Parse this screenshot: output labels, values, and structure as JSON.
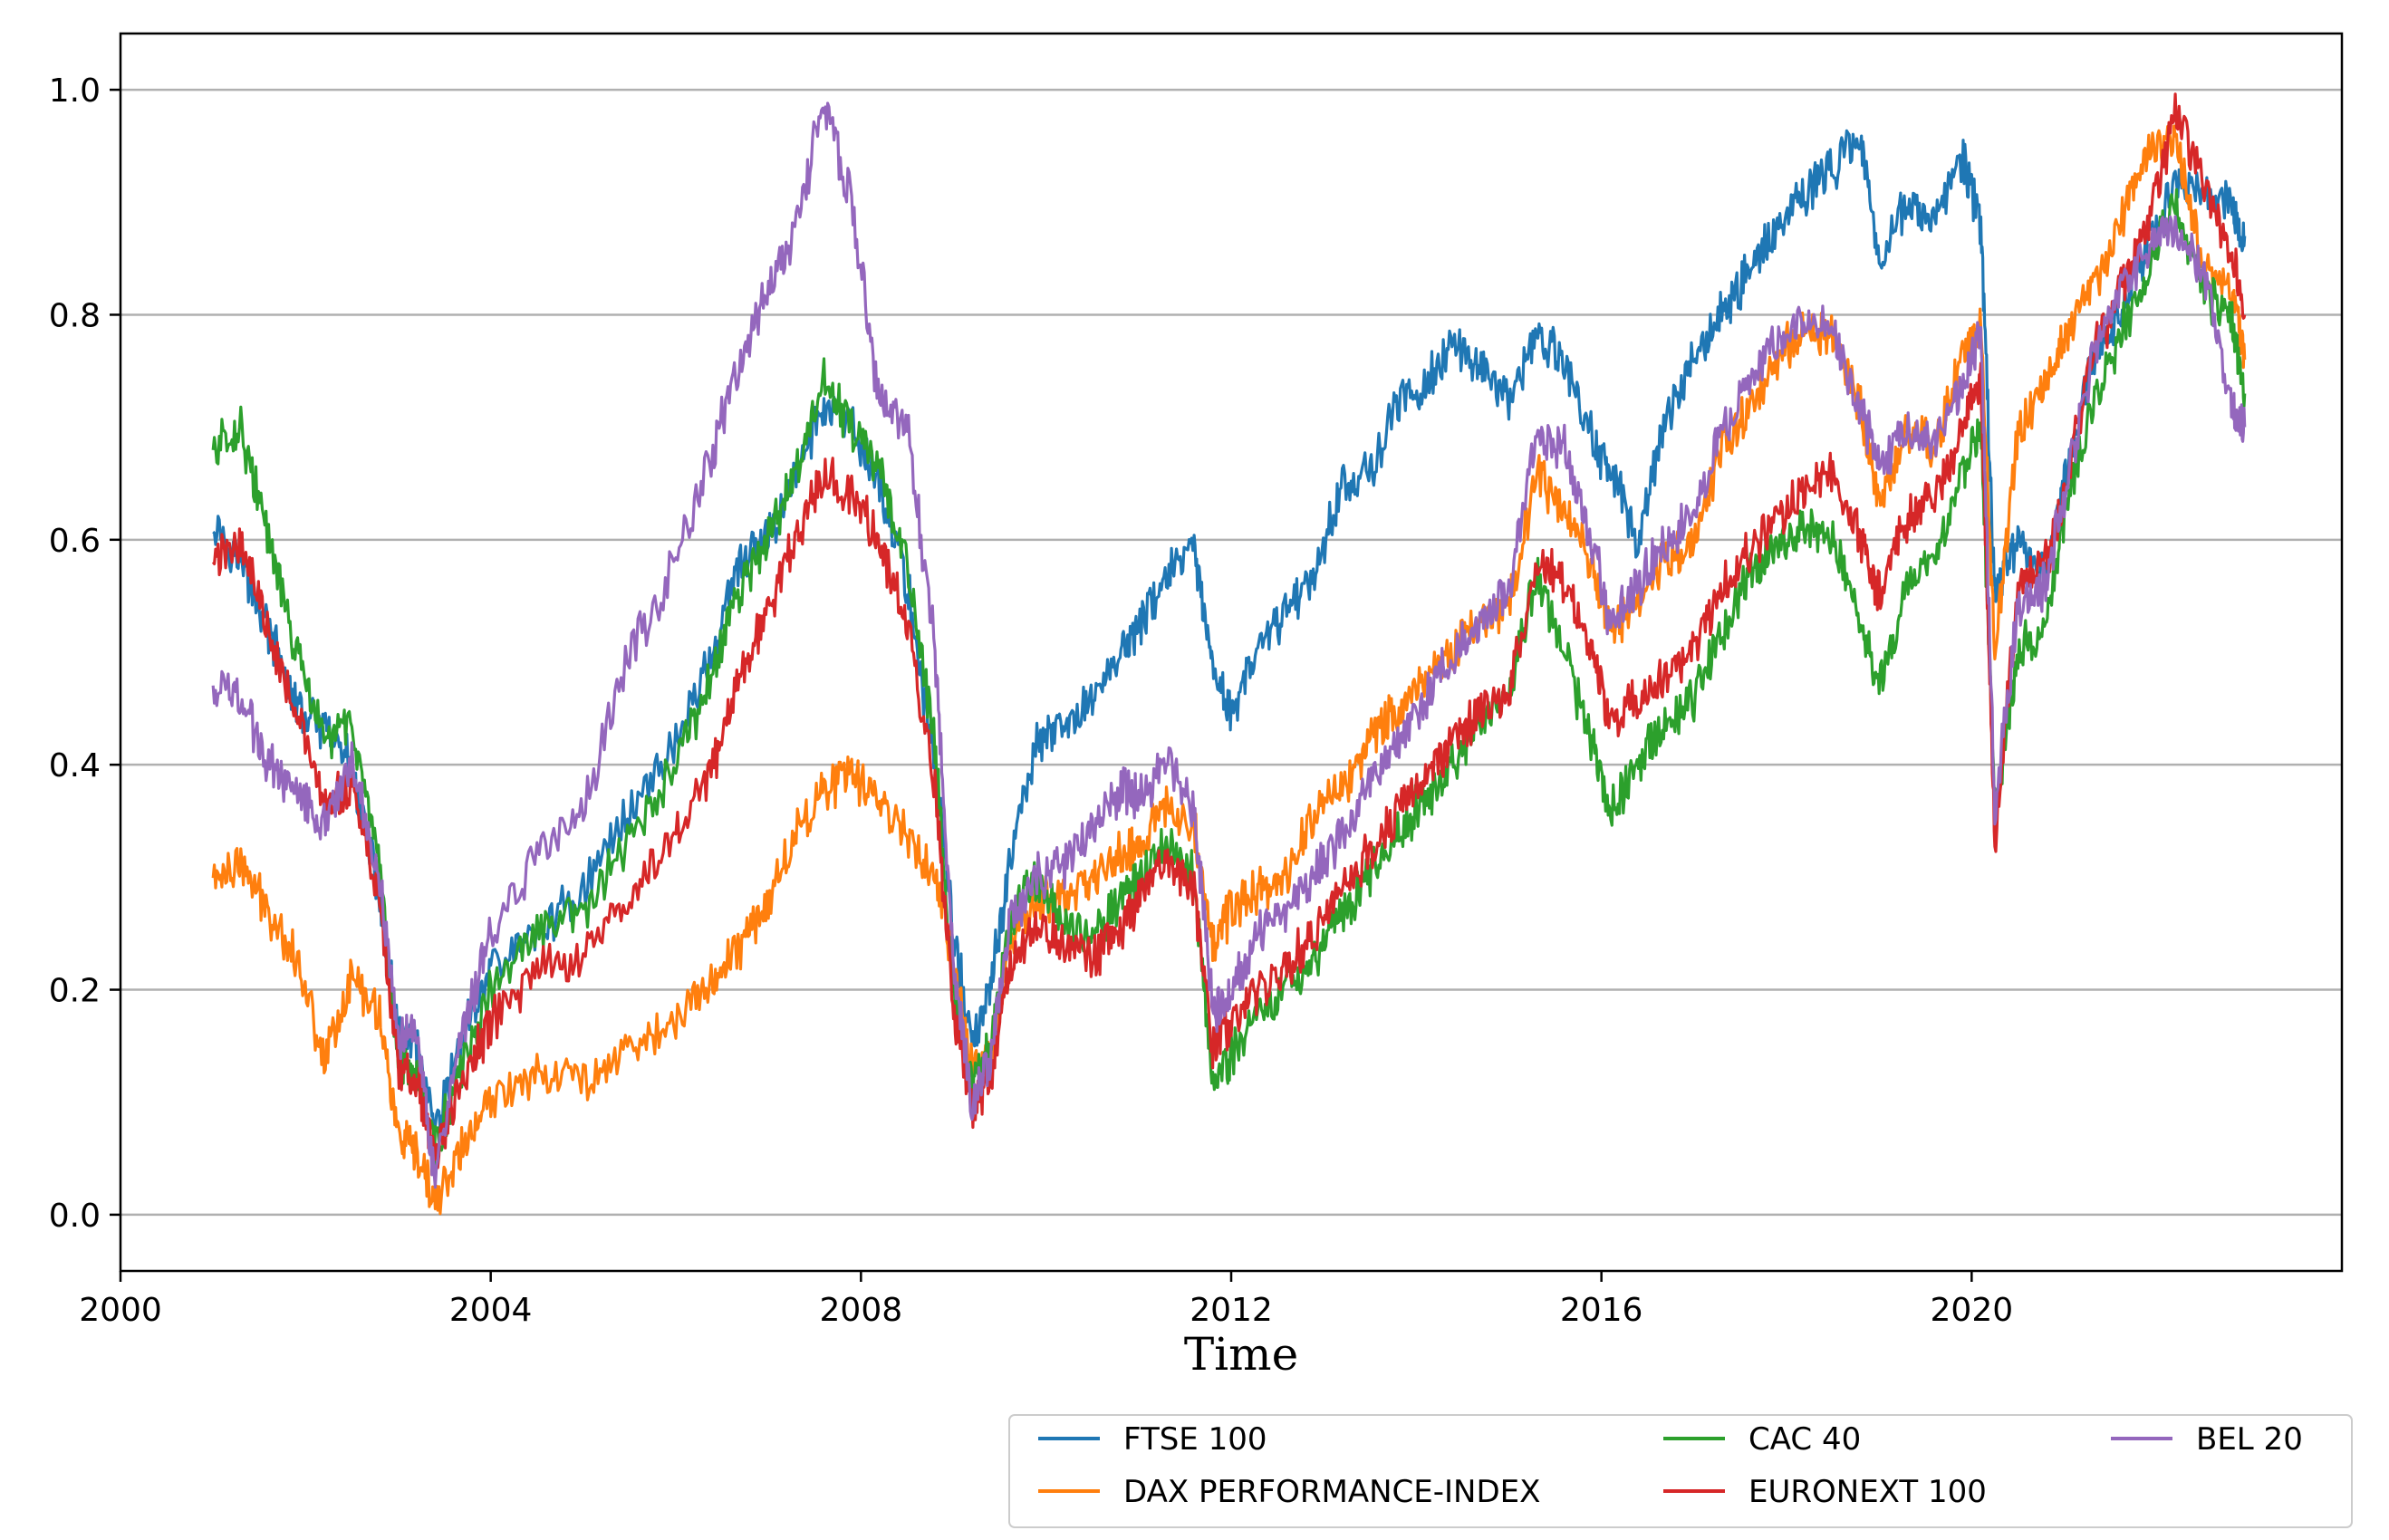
{
  "chart_data": {
    "type": "line",
    "title": "",
    "xlabel": "Time",
    "ylabel": "",
    "xlim": [
      2000.0,
      2024.0
    ],
    "ylim": [
      -0.05,
      1.05
    ],
    "x_ticks": [
      2000,
      2004,
      2008,
      2012,
      2016,
      2020
    ],
    "x_tick_labels": [
      "2000",
      "2004",
      "2008",
      "2012",
      "2016",
      "2020"
    ],
    "y_ticks": [
      0.0,
      0.2,
      0.4,
      0.6,
      0.8,
      1.0
    ],
    "y_tick_labels": [
      "0.0",
      "0.2",
      "0.4",
      "0.6",
      "0.8",
      "1.0"
    ],
    "grid": "horizontal",
    "legend_position": "bottom-right, below axes",
    "series": [
      {
        "name": "FTSE 100",
        "color": "#1f77b4",
        "x": [
          2001.0,
          2001.3,
          2001.6,
          2001.9,
          2002.2,
          2002.5,
          2002.8,
          2003.0,
          2003.2,
          2003.4,
          2003.7,
          2004.0,
          2004.5,
          2005.0,
          2005.5,
          2006.0,
          2006.4,
          2006.7,
          2007.0,
          2007.3,
          2007.6,
          2007.9,
          2008.2,
          2008.5,
          2008.8,
          2009.0,
          2009.2,
          2009.4,
          2009.6,
          2009.9,
          2010.2,
          2010.5,
          2010.8,
          2011.0,
          2011.3,
          2011.6,
          2011.8,
          2012.0,
          2012.3,
          2012.6,
          2012.9,
          2013.2,
          2013.5,
          2013.8,
          2014.1,
          2014.4,
          2014.7,
          2015.0,
          2015.3,
          2015.6,
          2015.9,
          2016.1,
          2016.4,
          2016.7,
          2017.0,
          2017.3,
          2017.6,
          2017.9,
          2018.2,
          2018.5,
          2018.8,
          2019.0,
          2019.3,
          2019.6,
          2019.9,
          2020.1,
          2020.25,
          2020.5,
          2020.8,
          2021.0,
          2021.3,
          2021.6,
          2021.9,
          2022.2,
          2022.5,
          2022.8,
          2022.95
        ],
        "values": [
          0.62,
          0.58,
          0.52,
          0.45,
          0.43,
          0.4,
          0.28,
          0.16,
          0.15,
          0.07,
          0.16,
          0.22,
          0.25,
          0.29,
          0.36,
          0.42,
          0.5,
          0.58,
          0.6,
          0.66,
          0.72,
          0.7,
          0.65,
          0.56,
          0.4,
          0.25,
          0.15,
          0.2,
          0.31,
          0.42,
          0.43,
          0.46,
          0.5,
          0.52,
          0.57,
          0.59,
          0.48,
          0.45,
          0.5,
          0.54,
          0.57,
          0.65,
          0.66,
          0.72,
          0.74,
          0.77,
          0.76,
          0.72,
          0.78,
          0.76,
          0.69,
          0.66,
          0.6,
          0.71,
          0.76,
          0.8,
          0.84,
          0.88,
          0.91,
          0.93,
          0.96,
          0.85,
          0.9,
          0.88,
          0.94,
          0.88,
          0.55,
          0.6,
          0.57,
          0.65,
          0.76,
          0.8,
          0.86,
          0.92,
          0.91,
          0.9,
          0.87
        ]
      },
      {
        "name": "DAX PERFORMANCE-INDEX",
        "color": "#ff7f0e",
        "x": [
          2001.0,
          2001.3,
          2001.6,
          2001.9,
          2002.2,
          2002.5,
          2002.8,
          2003.0,
          2003.2,
          2003.4,
          2003.7,
          2004.0,
          2004.5,
          2005.0,
          2005.5,
          2006.0,
          2006.4,
          2006.7,
          2007.0,
          2007.3,
          2007.6,
          2007.9,
          2008.2,
          2008.5,
          2008.8,
          2009.0,
          2009.2,
          2009.4,
          2009.6,
          2009.9,
          2010.2,
          2010.5,
          2010.8,
          2011.0,
          2011.3,
          2011.6,
          2011.8,
          2012.0,
          2012.3,
          2012.6,
          2012.9,
          2013.2,
          2013.5,
          2013.8,
          2014.1,
          2014.4,
          2014.7,
          2015.0,
          2015.3,
          2015.6,
          2015.9,
          2016.1,
          2016.4,
          2016.7,
          2017.0,
          2017.3,
          2017.6,
          2017.9,
          2018.2,
          2018.5,
          2018.8,
          2019.0,
          2019.3,
          2019.6,
          2019.9,
          2020.1,
          2020.25,
          2020.5,
          2020.8,
          2021.0,
          2021.3,
          2021.6,
          2021.9,
          2022.2,
          2022.5,
          2022.8,
          2022.95
        ],
        "values": [
          0.3,
          0.31,
          0.27,
          0.23,
          0.14,
          0.21,
          0.18,
          0.07,
          0.05,
          0.01,
          0.06,
          0.1,
          0.13,
          0.12,
          0.15,
          0.17,
          0.21,
          0.24,
          0.28,
          0.34,
          0.38,
          0.39,
          0.37,
          0.34,
          0.3,
          0.22,
          0.13,
          0.14,
          0.24,
          0.28,
          0.28,
          0.3,
          0.32,
          0.33,
          0.36,
          0.35,
          0.24,
          0.27,
          0.29,
          0.3,
          0.36,
          0.38,
          0.42,
          0.45,
          0.48,
          0.5,
          0.53,
          0.54,
          0.66,
          0.62,
          0.58,
          0.52,
          0.55,
          0.58,
          0.6,
          0.68,
          0.72,
          0.76,
          0.79,
          0.78,
          0.72,
          0.63,
          0.7,
          0.68,
          0.76,
          0.79,
          0.5,
          0.7,
          0.74,
          0.78,
          0.82,
          0.88,
          0.94,
          0.96,
          0.84,
          0.82,
          0.76
        ]
      },
      {
        "name": "CAC 40",
        "color": "#2ca02c",
        "x": [
          2001.0,
          2001.3,
          2001.6,
          2001.9,
          2002.2,
          2002.5,
          2002.8,
          2003.0,
          2003.2,
          2003.4,
          2003.7,
          2004.0,
          2004.5,
          2005.0,
          2005.5,
          2006.0,
          2006.4,
          2006.7,
          2007.0,
          2007.3,
          2007.6,
          2007.9,
          2008.2,
          2008.5,
          2008.8,
          2009.0,
          2009.2,
          2009.4,
          2009.6,
          2009.9,
          2010.2,
          2010.5,
          2010.8,
          2011.0,
          2011.3,
          2011.6,
          2011.8,
          2012.0,
          2012.3,
          2012.6,
          2012.9,
          2013.2,
          2013.5,
          2013.8,
          2014.1,
          2014.4,
          2014.7,
          2015.0,
          2015.3,
          2015.6,
          2015.9,
          2016.1,
          2016.4,
          2016.7,
          2017.0,
          2017.3,
          2017.6,
          2017.9,
          2018.2,
          2018.5,
          2018.8,
          2019.0,
          2019.3,
          2019.6,
          2019.9,
          2020.1,
          2020.25,
          2020.5,
          2020.8,
          2021.0,
          2021.3,
          2021.6,
          2021.9,
          2022.2,
          2022.5,
          2022.8,
          2022.95
        ],
        "values": [
          0.68,
          0.7,
          0.6,
          0.5,
          0.42,
          0.44,
          0.3,
          0.14,
          0.13,
          0.06,
          0.13,
          0.2,
          0.25,
          0.27,
          0.33,
          0.4,
          0.48,
          0.56,
          0.6,
          0.66,
          0.74,
          0.7,
          0.66,
          0.58,
          0.42,
          0.2,
          0.11,
          0.15,
          0.26,
          0.3,
          0.26,
          0.25,
          0.28,
          0.3,
          0.33,
          0.3,
          0.12,
          0.14,
          0.18,
          0.2,
          0.23,
          0.27,
          0.3,
          0.34,
          0.37,
          0.4,
          0.44,
          0.46,
          0.57,
          0.5,
          0.42,
          0.36,
          0.4,
          0.44,
          0.46,
          0.52,
          0.57,
          0.6,
          0.61,
          0.6,
          0.53,
          0.47,
          0.56,
          0.58,
          0.66,
          0.7,
          0.36,
          0.5,
          0.52,
          0.62,
          0.72,
          0.78,
          0.84,
          0.9,
          0.82,
          0.8,
          0.73
        ]
      },
      {
        "name": "EURONEXT 100",
        "color": "#d62728",
        "x": [
          2001.0,
          2001.3,
          2001.6,
          2001.9,
          2002.2,
          2002.5,
          2002.8,
          2003.0,
          2003.2,
          2003.4,
          2003.7,
          2004.0,
          2004.5,
          2005.0,
          2005.5,
          2006.0,
          2006.4,
          2006.7,
          2007.0,
          2007.3,
          2007.6,
          2007.9,
          2008.2,
          2008.5,
          2008.8,
          2009.0,
          2009.2,
          2009.4,
          2009.6,
          2009.9,
          2010.2,
          2010.5,
          2010.8,
          2011.0,
          2011.3,
          2011.6,
          2011.8,
          2012.0,
          2012.3,
          2012.6,
          2012.9,
          2013.2,
          2013.5,
          2013.8,
          2014.1,
          2014.4,
          2014.7,
          2015.0,
          2015.3,
          2015.6,
          2015.9,
          2016.1,
          2016.4,
          2016.7,
          2017.0,
          2017.3,
          2017.6,
          2017.9,
          2018.2,
          2018.5,
          2018.8,
          2019.0,
          2019.3,
          2019.6,
          2019.9,
          2020.1,
          2020.25,
          2020.5,
          2020.8,
          2021.0,
          2021.3,
          2021.6,
          2021.9,
          2022.2,
          2022.5,
          2022.8,
          2022.95
        ],
        "values": [
          0.58,
          0.6,
          0.52,
          0.45,
          0.36,
          0.38,
          0.28,
          0.13,
          0.12,
          0.05,
          0.12,
          0.17,
          0.22,
          0.23,
          0.28,
          0.34,
          0.4,
          0.48,
          0.54,
          0.6,
          0.66,
          0.64,
          0.6,
          0.52,
          0.38,
          0.18,
          0.09,
          0.12,
          0.22,
          0.26,
          0.24,
          0.23,
          0.25,
          0.28,
          0.31,
          0.29,
          0.15,
          0.17,
          0.2,
          0.22,
          0.25,
          0.29,
          0.32,
          0.36,
          0.39,
          0.42,
          0.45,
          0.46,
          0.58,
          0.56,
          0.5,
          0.43,
          0.46,
          0.48,
          0.5,
          0.56,
          0.59,
          0.62,
          0.64,
          0.66,
          0.6,
          0.55,
          0.62,
          0.64,
          0.7,
          0.74,
          0.33,
          0.56,
          0.58,
          0.64,
          0.76,
          0.82,
          0.88,
          0.98,
          0.92,
          0.86,
          0.8
        ]
      },
      {
        "name": "BEL 20",
        "color": "#9467bd",
        "x": [
          2001.0,
          2001.3,
          2001.6,
          2001.9,
          2002.2,
          2002.5,
          2002.8,
          2003.0,
          2003.2,
          2003.4,
          2003.7,
          2004.0,
          2004.5,
          2005.0,
          2005.5,
          2006.0,
          2006.4,
          2006.7,
          2007.0,
          2007.3,
          2007.6,
          2007.9,
          2008.2,
          2008.5,
          2008.8,
          2009.0,
          2009.2,
          2009.4,
          2009.6,
          2009.9,
          2010.2,
          2010.5,
          2010.8,
          2011.0,
          2011.3,
          2011.6,
          2011.8,
          2012.0,
          2012.3,
          2012.6,
          2012.9,
          2013.2,
          2013.5,
          2013.8,
          2014.1,
          2014.4,
          2014.7,
          2015.0,
          2015.3,
          2015.6,
          2015.9,
          2016.1,
          2016.4,
          2016.7,
          2017.0,
          2017.3,
          2017.6,
          2017.9,
          2018.2,
          2018.5,
          2018.8,
          2019.0,
          2019.3,
          2019.6,
          2019.9,
          2020.1,
          2020.25,
          2020.5,
          2020.8,
          2021.0,
          2021.3,
          2021.6,
          2021.9,
          2022.2,
          2022.5,
          2022.8,
          2022.95
        ],
        "values": [
          0.47,
          0.46,
          0.4,
          0.38,
          0.35,
          0.4,
          0.3,
          0.16,
          0.17,
          0.03,
          0.16,
          0.25,
          0.32,
          0.36,
          0.5,
          0.58,
          0.68,
          0.76,
          0.82,
          0.88,
          0.99,
          0.9,
          0.72,
          0.7,
          0.5,
          0.22,
          0.1,
          0.14,
          0.26,
          0.3,
          0.31,
          0.34,
          0.38,
          0.37,
          0.4,
          0.36,
          0.18,
          0.2,
          0.25,
          0.27,
          0.3,
          0.34,
          0.38,
          0.42,
          0.46,
          0.5,
          0.53,
          0.55,
          0.7,
          0.68,
          0.6,
          0.52,
          0.56,
          0.6,
          0.62,
          0.7,
          0.74,
          0.78,
          0.8,
          0.78,
          0.72,
          0.66,
          0.7,
          0.68,
          0.74,
          0.78,
          0.36,
          0.54,
          0.56,
          0.64,
          0.76,
          0.82,
          0.86,
          0.88,
          0.84,
          0.72,
          0.7
        ]
      }
    ]
  }
}
